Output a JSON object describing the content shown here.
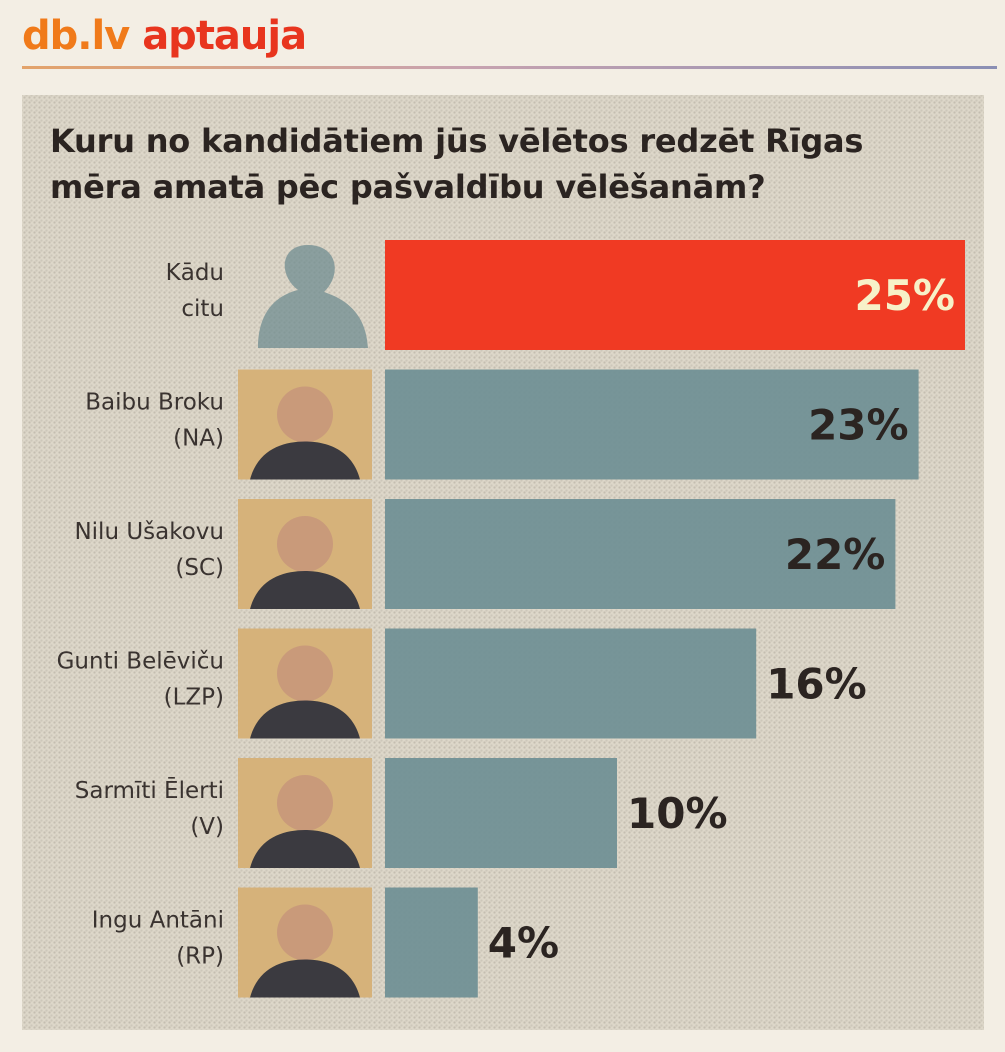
{
  "masthead": {
    "brand": "db.lv",
    "word": "aptauja"
  },
  "colors": {
    "brand": "#f07a1a",
    "accent": "#e8351e",
    "highlight_bar": "#f03a23",
    "bar": "#6e8f94",
    "value_text_on_highlight": "#f7f1c8",
    "value_text": "#2b2421"
  },
  "chart_data": {
    "type": "bar",
    "orientation": "horizontal",
    "title": "Kuru no kandidātiem jūs vēlētos redzēt Rīgas mēra amatā pēc pašvaldību vēlēšanām?",
    "xlabel": "",
    "ylabel": "",
    "xlim": [
      0,
      25
    ],
    "grid": false,
    "legend": "none",
    "unit": "%",
    "categories": [
      [
        "Kādu",
        "citu"
      ],
      [
        "Baibu Broku",
        "(NA)"
      ],
      [
        "Nilu Ušakovu",
        "(SC)"
      ],
      [
        "Gunti Belēviču",
        "(LZP)"
      ],
      [
        "Sarmīti Ēlerti",
        "(V)"
      ],
      [
        "Ingu Antāni",
        "(RP)"
      ]
    ],
    "values": [
      25,
      23,
      22,
      16,
      10,
      4
    ],
    "value_labels": [
      "25%",
      "23%",
      "22%",
      "16%",
      "10%",
      "4%"
    ],
    "highlighted_index": 0
  }
}
